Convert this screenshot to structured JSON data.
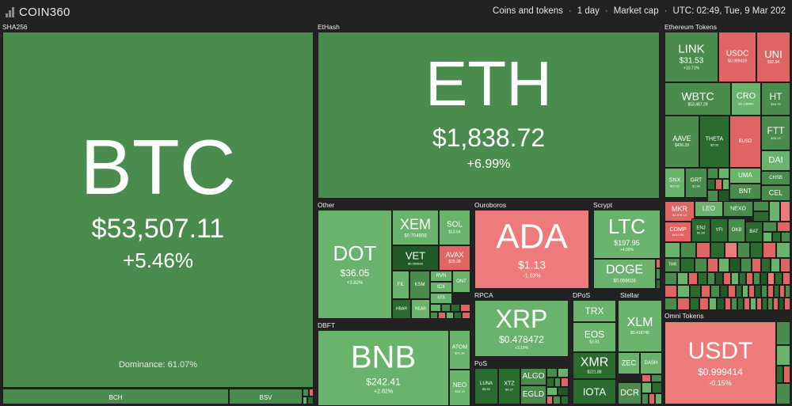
{
  "app": {
    "name": "COIN360"
  },
  "filters": {
    "view": "Coins and tokens",
    "period": "1 day",
    "metric": "Market cap",
    "time": "UTC: 02:49, Tue, 9 Mar 202"
  },
  "sections": {
    "sha256": "SHA256",
    "ethash": "EtHash",
    "eth_tokens": "Ethereum Tokens",
    "other": "Other",
    "ouroboros": "Ouroboros",
    "scrypt": "Scrypt",
    "dbft": "DBFT",
    "rpca": "RPCA",
    "dpos": "DPoS",
    "stellar": "Stellar",
    "pos": "PoS",
    "omni": "Omni Tokens"
  },
  "btc": {
    "symbol": "BTC",
    "price": "$53,507.11",
    "change": "+5.46%",
    "dominance": "Dominance: 61.07%"
  },
  "eth": {
    "symbol": "ETH",
    "price": "$1,838.72",
    "change": "+6.99%"
  },
  "ada": {
    "symbol": "ADA",
    "price": "$1.13",
    "change": "-1.03%"
  },
  "dot": {
    "symbol": "DOT",
    "price": "$36.05",
    "change": "+3.82%"
  },
  "bnb": {
    "symbol": "BNB",
    "price": "$242.41",
    "change": "+2.82%"
  },
  "xrp": {
    "symbol": "XRP",
    "price": "$0.478472",
    "change": "+3.19%"
  },
  "ltc": {
    "symbol": "LTC",
    "price": "$197.95",
    "change": "+4.09%"
  },
  "doge": {
    "symbol": "DOGE",
    "price": "$0.059028"
  },
  "usdt": {
    "symbol": "USDT",
    "price": "$0.999414",
    "change": "-0.15%"
  },
  "xlm": {
    "symbol": "XLM",
    "price": "$0.418746"
  },
  "link": {
    "symbol": "LINK",
    "price": "$31.53",
    "change": "+10.71%"
  },
  "usdc": {
    "symbol": "USDC",
    "price": "$0.999419"
  },
  "uni": {
    "symbol": "UNI",
    "price": "$32.94"
  },
  "wbtc": {
    "symbol": "WBTC",
    "price": "$53,487.29"
  },
  "cro": {
    "symbol": "CRO",
    "price": "$0.138856"
  },
  "ht": {
    "symbol": "HT",
    "price": "$15.79"
  },
  "aave": {
    "symbol": "AAVE",
    "price": "$436.29"
  },
  "theta": {
    "symbol": "THETA",
    "price": "$5.06"
  },
  "busd": {
    "symbol": "BUSD"
  },
  "ftt": {
    "symbol": "FTT",
    "price": "$33.13"
  },
  "dai": {
    "symbol": "DAI"
  },
  "snx": {
    "symbol": "SNX",
    "price": "$20.81"
  },
  "grt": {
    "symbol": "GRT",
    "price": "$1.84"
  },
  "uma": {
    "symbol": "UMA"
  },
  "chsb": {
    "symbol": "CHSB"
  },
  "bnt": {
    "symbol": "BNT"
  },
  "cel": {
    "symbol": "CEL"
  },
  "mkr": {
    "symbol": "MKR",
    "price": "$1,976.14"
  },
  "leo": {
    "symbol": "LEO"
  },
  "nexo": {
    "symbol": "NEXO"
  },
  "comp": {
    "symbol": "COMP",
    "price": "$412.56"
  },
  "enj": {
    "symbol": "ENJ",
    "price": "$1.89"
  },
  "yfi": {
    "symbol": "YFI"
  },
  "okb": {
    "symbol": "OKB"
  },
  "bat": {
    "symbol": "BAT"
  },
  "thr": {
    "symbol": "THR"
  },
  "xem": {
    "symbol": "XEM",
    "price": "$0.704608"
  },
  "sol": {
    "symbol": "SOL",
    "price": "$13.64"
  },
  "vet": {
    "symbol": "VET",
    "price": "$0.064890"
  },
  "avax": {
    "symbol": "AVAX",
    "price": "$25.28"
  },
  "fil": {
    "symbol": "FIL"
  },
  "ksm": {
    "symbol": "KSM"
  },
  "rvn": {
    "symbol": "RVN"
  },
  "icx": {
    "symbol": "ICX"
  },
  "ont": {
    "symbol": "ONT"
  },
  "stx": {
    "symbol": "STX"
  },
  "hbar": {
    "symbol": "HBAR"
  },
  "near": {
    "symbol": "NEAR"
  },
  "atom": {
    "symbol": "ATOM",
    "price": "$20.34"
  },
  "neo": {
    "symbol": "NEO",
    "price": "$40.19"
  },
  "trx": {
    "symbol": "TRX"
  },
  "eos": {
    "symbol": "EOS",
    "price": "$3.91"
  },
  "xmr": {
    "symbol": "XMR",
    "price": "$221.88"
  },
  "iota": {
    "symbol": "IOTA"
  },
  "zec": {
    "symbol": "ZEC"
  },
  "dash": {
    "symbol": "DASH"
  },
  "dcr": {
    "symbol": "DCR"
  },
  "luna": {
    "symbol": "LUNA",
    "price": "$5.82"
  },
  "xtz": {
    "symbol": "XTZ",
    "price": "$4.07"
  },
  "algo": {
    "symbol": "ALGO"
  },
  "egld": {
    "symbol": "EGLD"
  },
  "bch": {
    "symbol": "BCH"
  },
  "bsv": {
    "symbol": "BSV"
  }
}
